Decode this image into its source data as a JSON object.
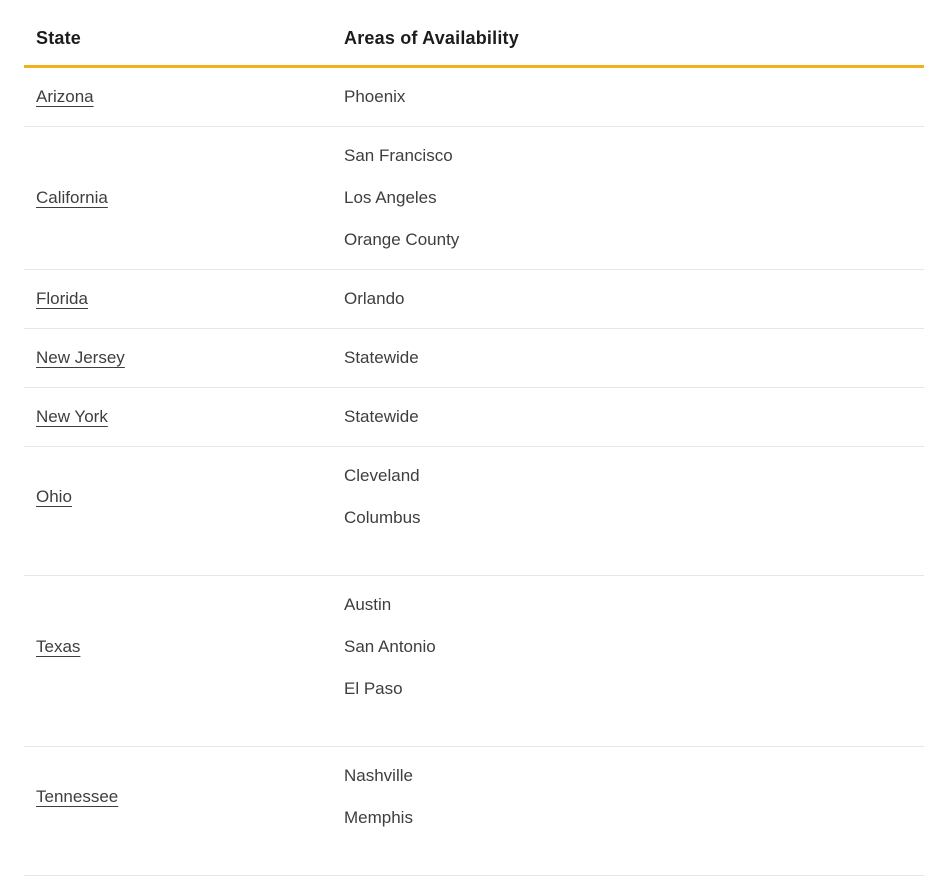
{
  "page": {
    "background": "#ffffff"
  },
  "table": {
    "headers": {
      "state": "State",
      "areas": "Areas of Availability"
    },
    "rows": [
      {
        "state": "Arizona",
        "areas": [
          "Phoenix"
        ]
      },
      {
        "state": "California",
        "areas": [
          "San Francisco",
          "Los Angeles",
          "Orange County"
        ]
      },
      {
        "state": "Florida",
        "areas": [
          "Orlando"
        ]
      },
      {
        "state": "New Jersey",
        "areas": [
          "Statewide"
        ]
      },
      {
        "state": "New York",
        "areas": [
          "Statewide"
        ]
      },
      {
        "state": "Ohio",
        "areas": [
          "Cleveland",
          "Columbus"
        ],
        "spacer": true
      },
      {
        "state": "Texas",
        "areas": [
          "Austin",
          "San Antonio",
          "El Paso"
        ],
        "spacer": true
      },
      {
        "state": "Tennessee",
        "areas": [
          "Nashville",
          "Memphis"
        ],
        "spacer": true
      }
    ],
    "colors": {
      "accent_rule": "#f2b01e",
      "row_divider": "#e7e7e7",
      "body_text": "#3e3e3e",
      "header_text": "#1c1c1c"
    }
  }
}
